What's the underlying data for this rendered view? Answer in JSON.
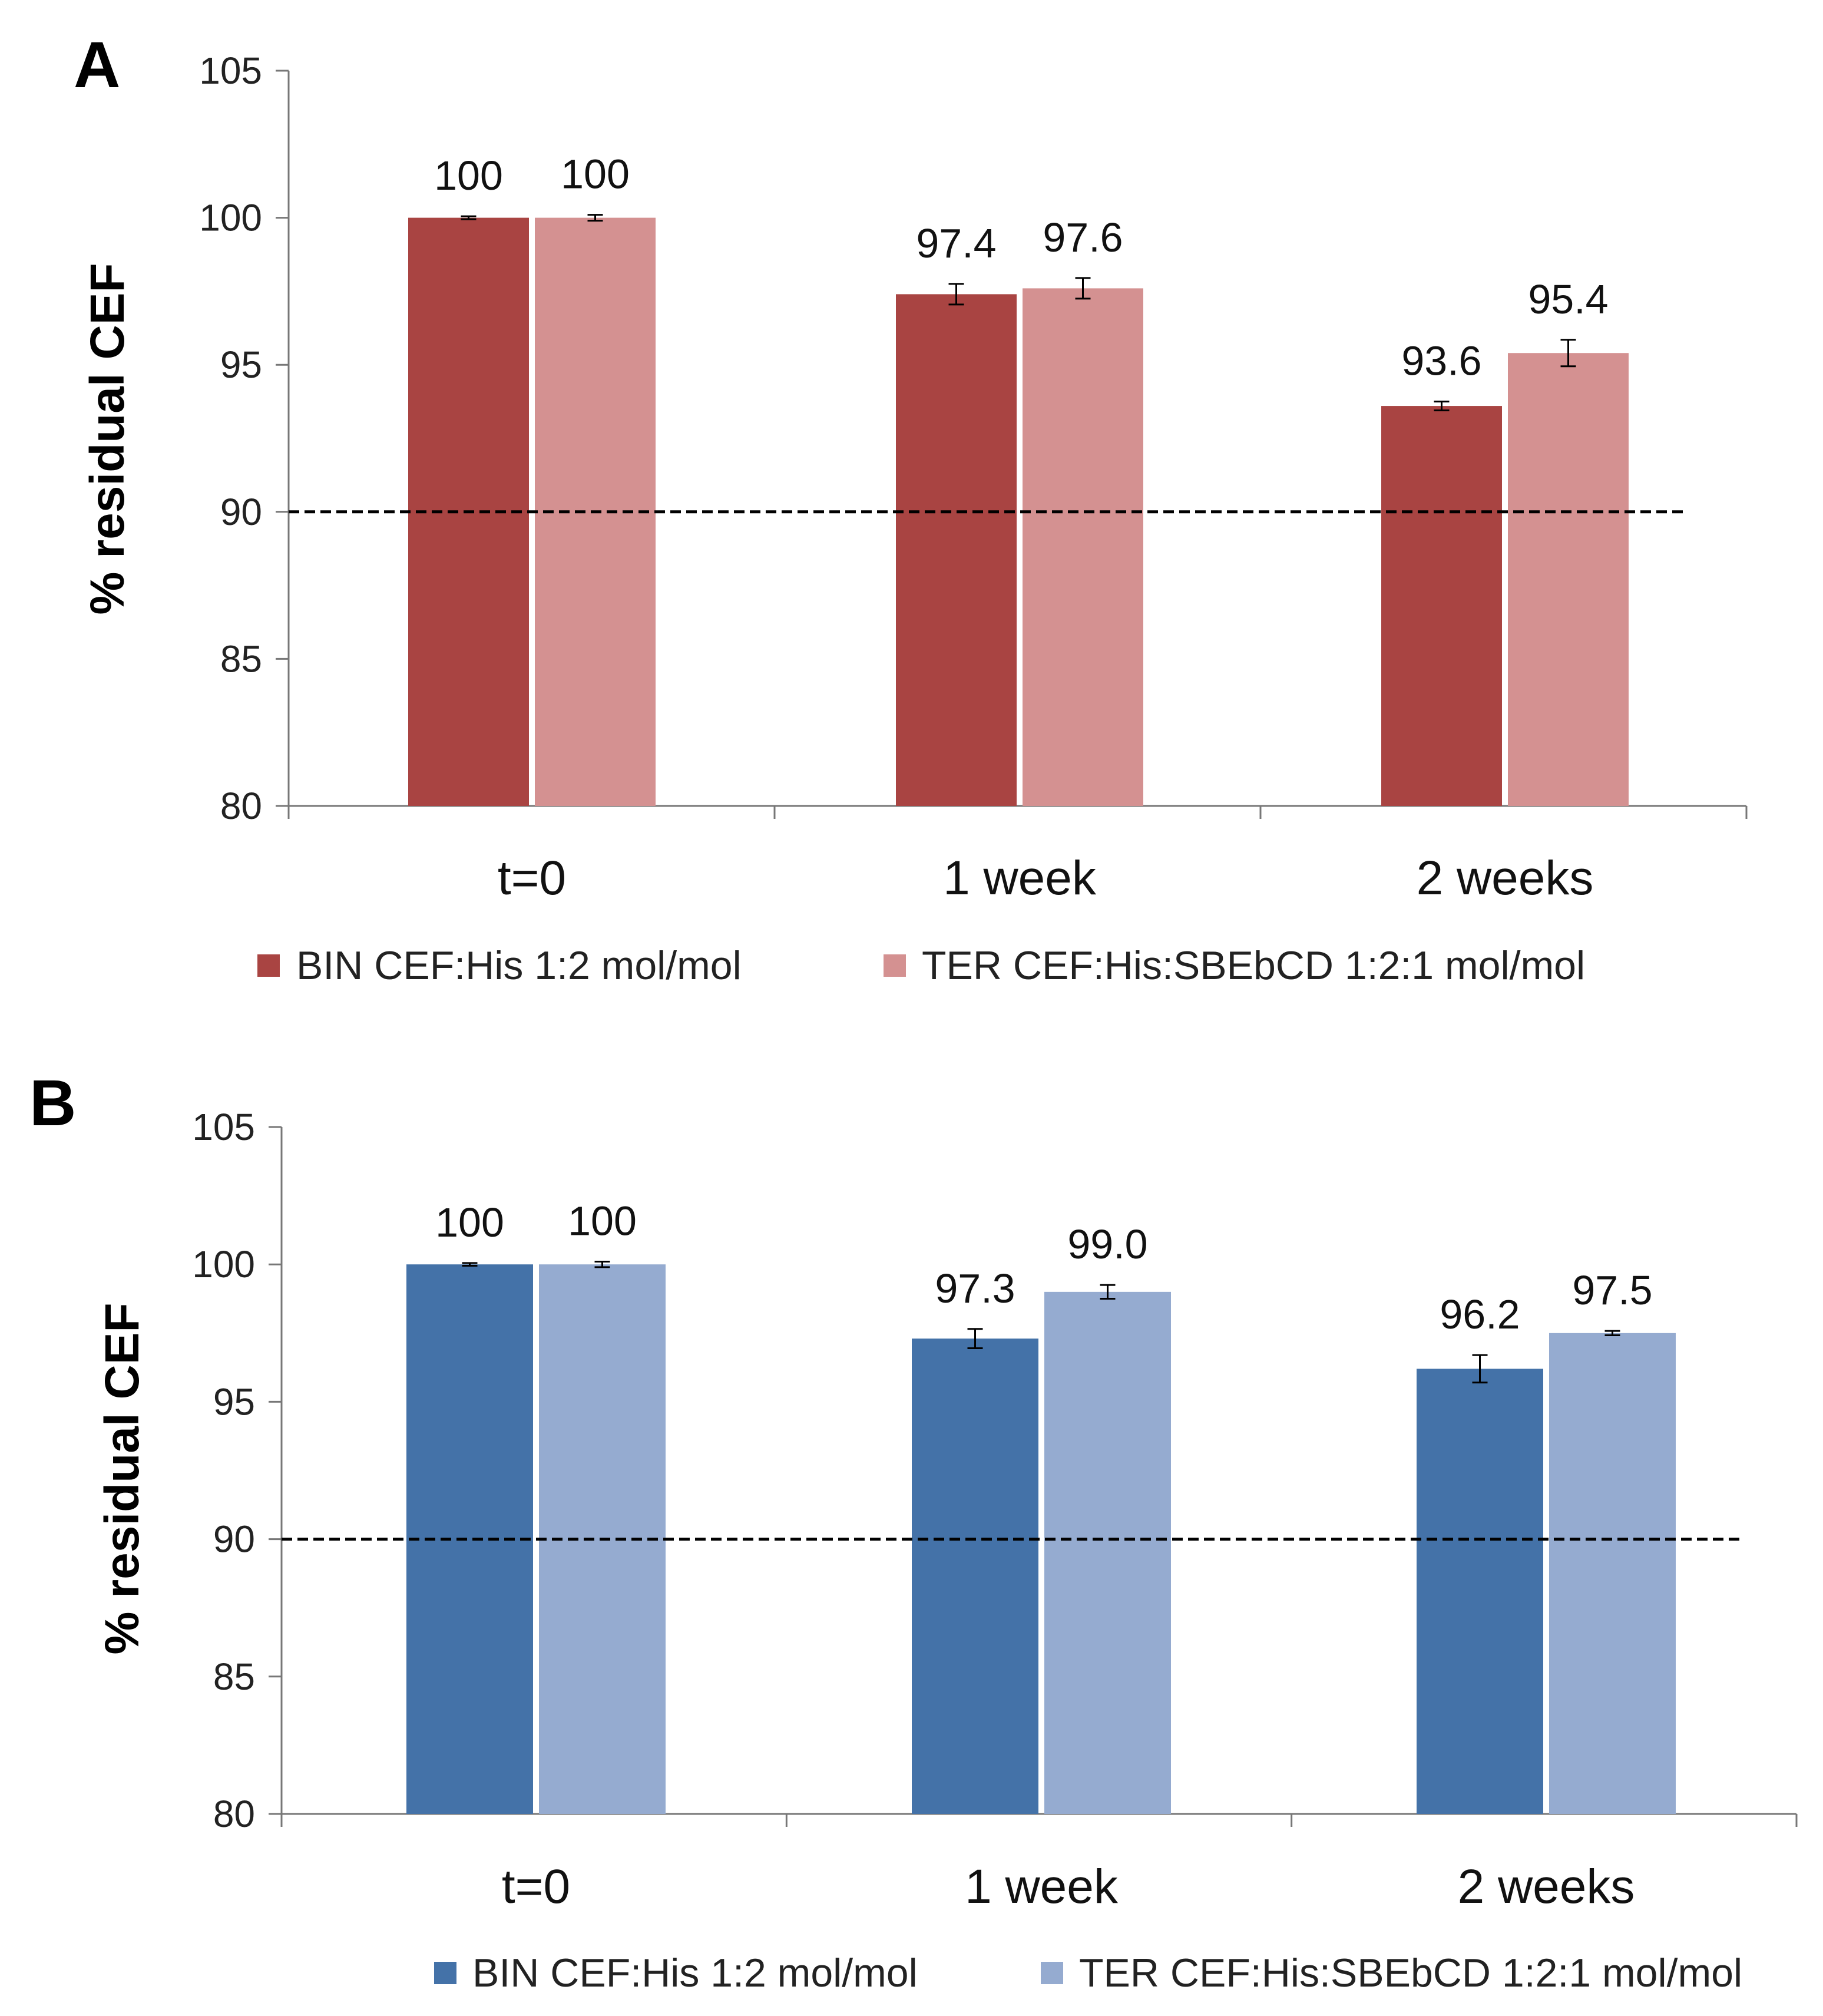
{
  "chart_data": [
    {
      "panel": "A",
      "type": "bar",
      "ylabel": "% residual CEF",
      "xlabel": "",
      "ylim": [
        80,
        105
      ],
      "yticks": [
        80,
        85,
        90,
        95,
        100,
        105
      ],
      "reference_line": 90,
      "categories": [
        "t=0",
        "1 week",
        "2 weeks"
      ],
      "legend_position": "bottom",
      "series": [
        {
          "name": "BIN CEF:His 1:2 mol/mol",
          "color": "#a94442",
          "values": [
            100,
            97.4,
            93.6
          ],
          "labels": [
            "100",
            "97.4",
            "93.6"
          ],
          "errors": [
            0.05,
            0.35,
            0.15
          ]
        },
        {
          "name": "TER CEF:His:SBEbCD 1:2:1 mol/mol",
          "color": "#d49191",
          "values": [
            100,
            97.6,
            95.4
          ],
          "labels": [
            "100",
            "97.6",
            "95.4"
          ],
          "errors": [
            0.1,
            0.35,
            0.45
          ]
        }
      ]
    },
    {
      "panel": "B",
      "type": "bar",
      "ylabel": "% residual CEF",
      "xlabel": "",
      "ylim": [
        80,
        105
      ],
      "yticks": [
        80,
        85,
        90,
        95,
        100,
        105
      ],
      "reference_line": 90,
      "categories": [
        "t=0",
        "1 week",
        "2 weeks"
      ],
      "legend_position": "bottom",
      "series": [
        {
          "name": "BIN CEF:His 1:2 mol/mol",
          "color": "#4472a8",
          "values": [
            100,
            97.3,
            96.2
          ],
          "labels": [
            "100",
            "97.3",
            "96.2"
          ],
          "errors": [
            0.05,
            0.35,
            0.5
          ]
        },
        {
          "name": "TER CEF:His:SBEbCD 1:2:1 mol/mol",
          "color": "#95abd0",
          "values": [
            100,
            99.0,
            97.5
          ],
          "labels": [
            "100",
            "99.0",
            "97.5"
          ],
          "errors": [
            0.1,
            0.25,
            0.08
          ]
        }
      ]
    }
  ]
}
